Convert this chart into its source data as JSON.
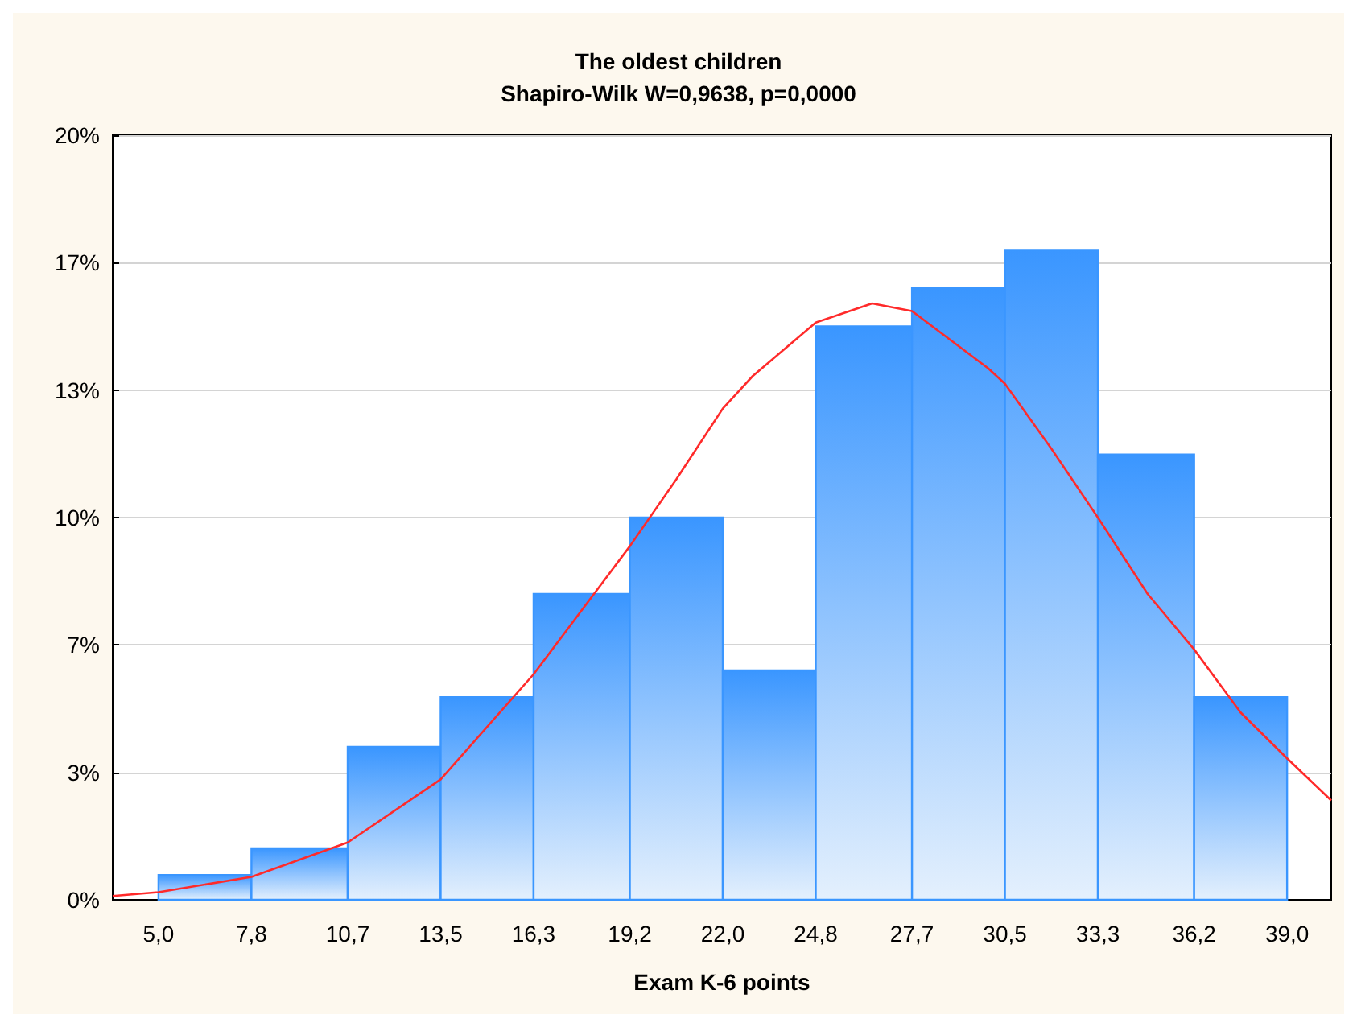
{
  "chart_data": {
    "type": "histogram",
    "title": "The oldest children",
    "subtitle": "Shapiro-Wilk W=0,9638, p=0,0000",
    "xlabel": "Exam K-6 points",
    "bins": [
      5.0,
      7.8,
      10.7,
      13.5,
      16.3,
      19.2,
      22.0,
      24.8,
      27.7,
      30.5,
      33.3,
      36.2,
      39.0
    ],
    "series": [
      {
        "color": "#3a96ff",
        "values": [
          0.65,
          1.35,
          4.0,
          5.3,
          8.0,
          10.0,
          6.0,
          15.0,
          16.0,
          17.0,
          11.65,
          5.3
        ]
      },
      {
        "type": "line",
        "color": "#ff2a2a",
        "x": [
          3.62,
          5.0,
          7.8,
          10.7,
          13.5,
          16.3,
          19.2,
          20.6,
          22.0,
          22.9,
          24.8,
          26.5,
          27.7,
          30.0,
          30.5,
          31.9,
          33.3,
          34.8,
          36.2,
          37.6,
          39.0,
          40.33
        ],
        "values": [
          0.1,
          0.2,
          0.6,
          1.5,
          3.15,
          5.9,
          9.25,
          11.0,
          12.85,
          13.7,
          15.1,
          15.6,
          15.4,
          13.9,
          13.5,
          11.8,
          10.0,
          8.0,
          6.55,
          4.9,
          3.7,
          2.6
        ]
      }
    ],
    "xlim": [
      3.62,
      40.33
    ],
    "xticks": [
      {
        "value": 5.0,
        "label": "5,0"
      },
      {
        "value": 7.8,
        "label": "7,8"
      },
      {
        "value": 10.7,
        "label": "10,7"
      },
      {
        "value": 13.5,
        "label": "13,5"
      },
      {
        "value": 16.3,
        "label": "16,3"
      },
      {
        "value": 19.2,
        "label": "19,2"
      },
      {
        "value": 22.0,
        "label": "22,0"
      },
      {
        "value": 24.8,
        "label": "24,8"
      },
      {
        "value": 27.7,
        "label": "27,7"
      },
      {
        "value": 30.5,
        "label": "30,5"
      },
      {
        "value": 33.3,
        "label": "33,3"
      },
      {
        "value": 36.2,
        "label": "36,2"
      },
      {
        "value": 39.0,
        "label": "39,0"
      }
    ],
    "ylim": [
      0,
      20
    ],
    "yticks": [
      {
        "value": 0,
        "label": "0%"
      },
      {
        "value": 3.33,
        "label": "3%"
      },
      {
        "value": 6.67,
        "label": "7%"
      },
      {
        "value": 10,
        "label": "10%"
      },
      {
        "value": 13.33,
        "label": "13%"
      },
      {
        "value": 16.67,
        "label": "17%"
      },
      {
        "value": 20,
        "label": "20%"
      }
    ],
    "grid": "y",
    "marker": "none",
    "line_style": "solid"
  }
}
